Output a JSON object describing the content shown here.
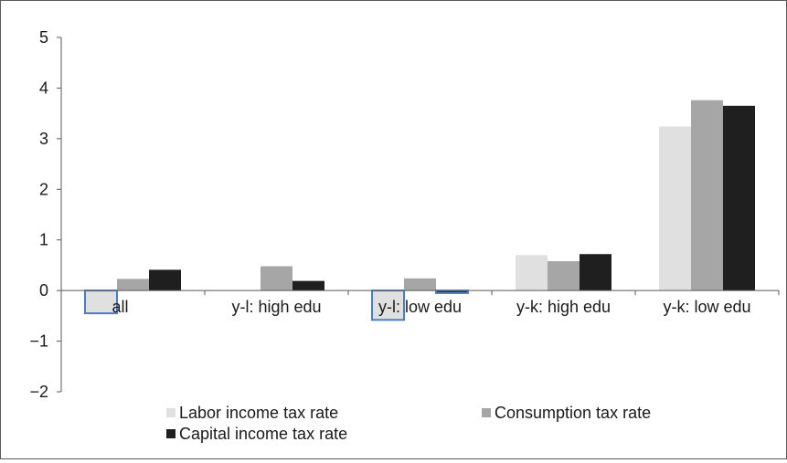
{
  "chart_data": {
    "type": "bar",
    "title": "",
    "xlabel": "",
    "ylabel": "",
    "ylim": [
      -2,
      5
    ],
    "yticks": [
      "5",
      "4",
      "3",
      "2",
      "1",
      "0",
      "−1",
      "−2"
    ],
    "ytick_values": [
      5,
      4,
      3,
      2,
      1,
      0,
      -1,
      -2
    ],
    "grid": false,
    "legend_placement": "bottom",
    "categories": [
      "all",
      "y-l: high edu",
      "y-l: low edu",
      "y-k: high edu",
      "y-k: low edu"
    ],
    "series": [
      {
        "name": "Labor income tax rate",
        "color": "#e0e0e0",
        "values": [
          -0.45,
          0.0,
          -0.58,
          0.7,
          3.24
        ]
      },
      {
        "name": "Consumption tax rate",
        "color": "#a6a6a6",
        "values": [
          0.23,
          0.48,
          0.24,
          0.58,
          3.76
        ]
      },
      {
        "name": "Capital income tax rate",
        "color": "#1f1f1f",
        "values": [
          0.41,
          0.19,
          -0.05,
          0.72,
          3.65
        ]
      }
    ],
    "highlight_outline_color": "#4a7ec2"
  }
}
